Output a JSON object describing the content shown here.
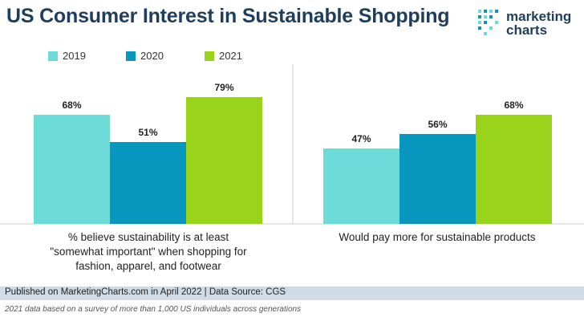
{
  "title": "US Consumer Interest in Sustainable Shopping",
  "logo": {
    "line1": "marketing",
    "line2": "charts"
  },
  "colors": {
    "s2019": "#6ddbd8",
    "s2020": "#0898bf",
    "s2021": "#99d41b",
    "title": "#1f3d5c",
    "footer_bg": "#cfdbe5"
  },
  "chart_data": {
    "type": "bar",
    "categories": [
      "% believe sustainability is at least \"somewhat important\" when shopping for fashion, apparel, and footwear",
      "Would pay more for sustainable products"
    ],
    "series": [
      {
        "name": "2019",
        "values": [
          68,
          47
        ],
        "labels": [
          "68%",
          "47%"
        ]
      },
      {
        "name": "2020",
        "values": [
          51,
          56
        ],
        "labels": [
          "51%",
          "56%"
        ]
      },
      {
        "name": "2021",
        "values": [
          79,
          68
        ],
        "labels": [
          "79%",
          "68%"
        ]
      }
    ],
    "ylim": [
      0,
      100
    ],
    "unit": "%",
    "legend_position": "top-left",
    "grid": false
  },
  "legend": [
    {
      "label": "2019"
    },
    {
      "label": "2020"
    },
    {
      "label": "2021"
    }
  ],
  "category_labels": {
    "group1": [
      "% believe sustainability is at least",
      "\"somewhat important\" when shopping for",
      "fashion, apparel, and footwear"
    ],
    "group2": "Would pay more for sustainable products"
  },
  "footer": "Published on MarketingCharts.com in April 2022 | Data Source: CGS",
  "footnote": "2021 data based on a survey of more than 1,000 US individuals across generations"
}
